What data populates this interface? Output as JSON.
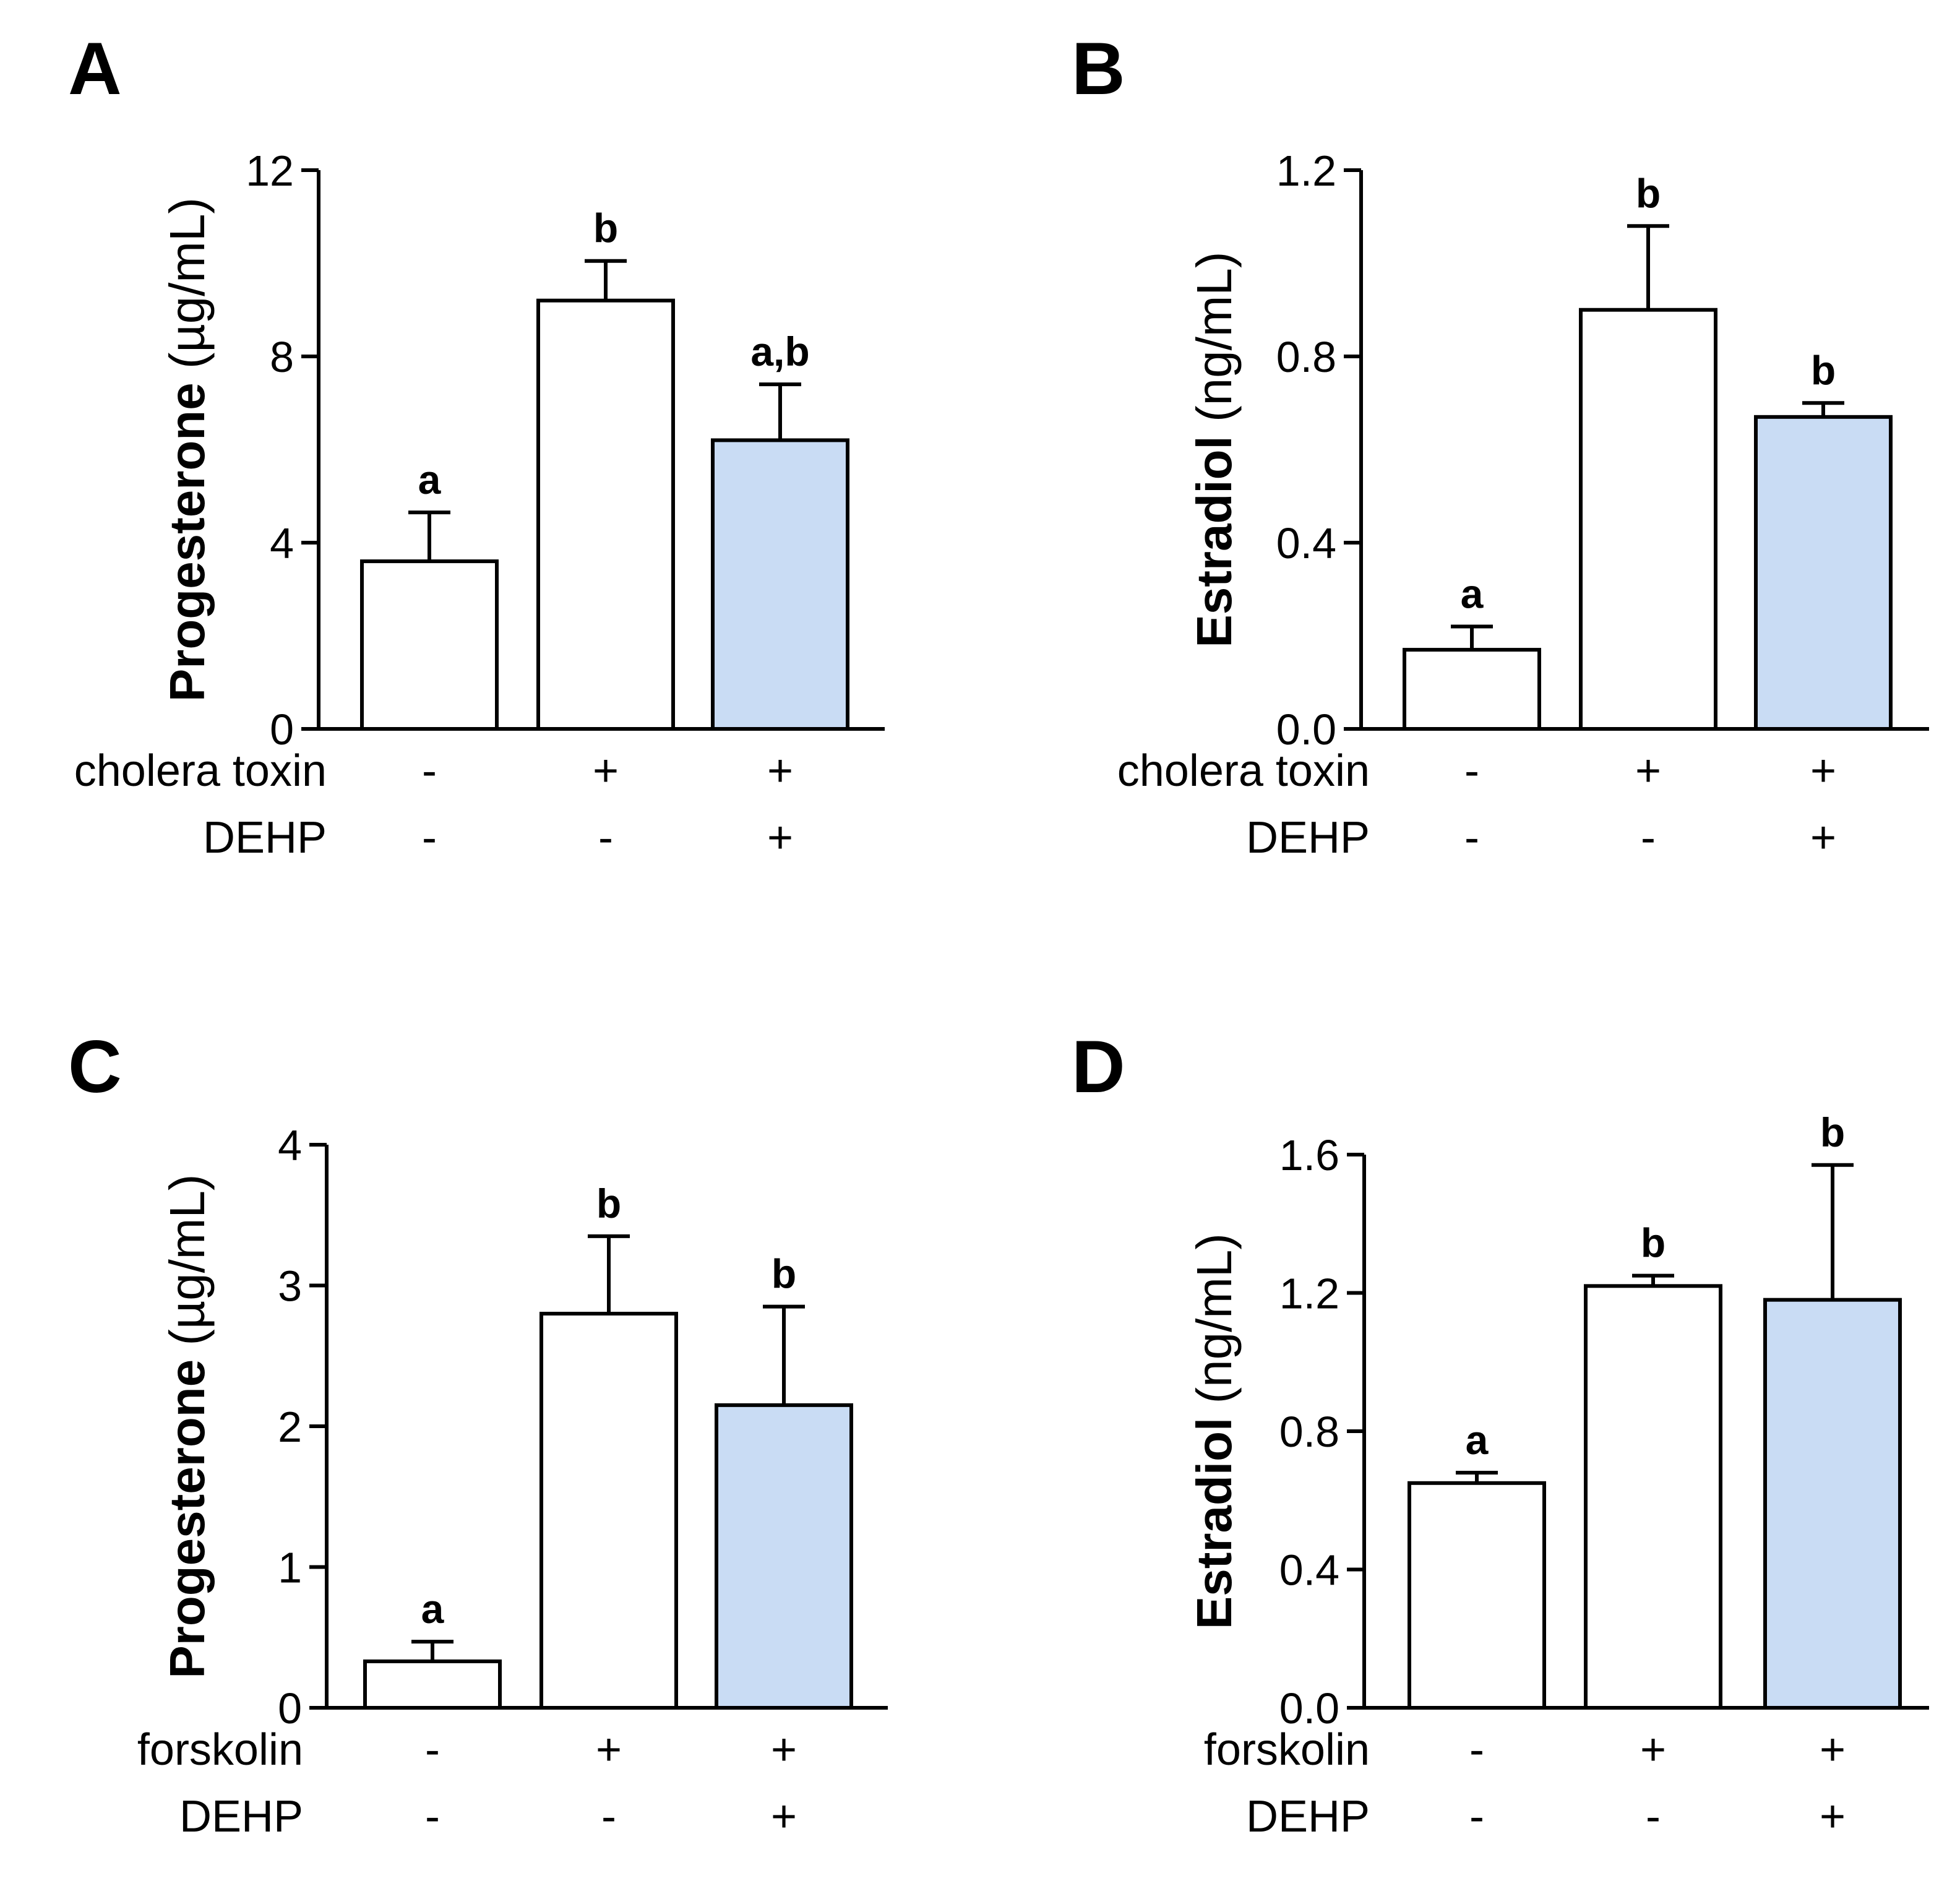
{
  "colors": {
    "bar_default": "#ffffff",
    "bar_highlight": "#c9dcf4",
    "stroke": "#000000"
  },
  "chart_data": [
    {
      "panel": "A",
      "type": "bar",
      "ylabel_main": "Progesterone",
      "ylabel_unit": "(µg/mL)",
      "ylim": [
        0,
        12
      ],
      "yticks": [
        "0",
        "4",
        "8",
        "12"
      ],
      "ytick_values": [
        0,
        4,
        8,
        12
      ],
      "values": [
        3.6,
        9.2,
        6.2
      ],
      "errors": [
        1.05,
        0.85,
        1.2
      ],
      "significance": [
        "a",
        "b",
        "a,b"
      ],
      "bar_fill": [
        "default",
        "default",
        "highlight"
      ],
      "conditions": [
        {
          "name": "cholera toxin",
          "signs": [
            "-",
            "+",
            "+"
          ]
        },
        {
          "name": "DEHP",
          "signs": [
            "-",
            "-",
            "+"
          ]
        }
      ]
    },
    {
      "panel": "B",
      "type": "bar",
      "ylabel_main": "Estradiol",
      "ylabel_unit": "(ng/mL)",
      "ylim": [
        0,
        1.2
      ],
      "yticks": [
        "0.0",
        "0.4",
        "0.8",
        "1.2"
      ],
      "ytick_values": [
        0,
        0.4,
        0.8,
        1.2
      ],
      "values": [
        0.17,
        0.9,
        0.67
      ],
      "errors": [
        0.05,
        0.18,
        0.03
      ],
      "significance": [
        "a",
        "b",
        "b"
      ],
      "bar_fill": [
        "default",
        "default",
        "highlight"
      ],
      "conditions": [
        {
          "name": "cholera toxin",
          "signs": [
            "-",
            "+",
            "+"
          ]
        },
        {
          "name": "DEHP",
          "signs": [
            "-",
            "-",
            "+"
          ]
        }
      ]
    },
    {
      "panel": "C",
      "type": "bar",
      "ylabel_main": "Progesterone",
      "ylabel_unit": "(µg/mL)",
      "ylim": [
        0,
        4
      ],
      "yticks": [
        "0",
        "1",
        "2",
        "3",
        "4"
      ],
      "ytick_values": [
        0,
        1,
        2,
        3,
        4
      ],
      "values": [
        0.33,
        2.8,
        2.15
      ],
      "errors": [
        0.14,
        0.55,
        0.7
      ],
      "significance": [
        "a",
        "b",
        "b"
      ],
      "bar_fill": [
        "default",
        "default",
        "highlight"
      ],
      "conditions": [
        {
          "name": "forskolin",
          "signs": [
            "-",
            "+",
            "+"
          ]
        },
        {
          "name": "DEHP",
          "signs": [
            "-",
            "-",
            "+"
          ]
        }
      ]
    },
    {
      "panel": "D",
      "type": "bar",
      "ylabel_main": "Estradiol",
      "ylabel_unit": "(ng/mL)",
      "ylim": [
        0,
        1.6
      ],
      "yticks": [
        "0.0",
        "0.4",
        "0.8",
        "1.2",
        "1.6"
      ],
      "ytick_values": [
        0,
        0.4,
        0.8,
        1.2,
        1.6
      ],
      "values": [
        0.65,
        1.22,
        1.18
      ],
      "errors": [
        0.03,
        0.03,
        0.39
      ],
      "significance": [
        "a",
        "b",
        "b"
      ],
      "bar_fill": [
        "default",
        "default",
        "highlight"
      ],
      "conditions": [
        {
          "name": "forskolin",
          "signs": [
            "-",
            "+",
            "+"
          ]
        },
        {
          "name": "DEHP",
          "signs": [
            "-",
            "-",
            "+"
          ]
        }
      ]
    }
  ]
}
